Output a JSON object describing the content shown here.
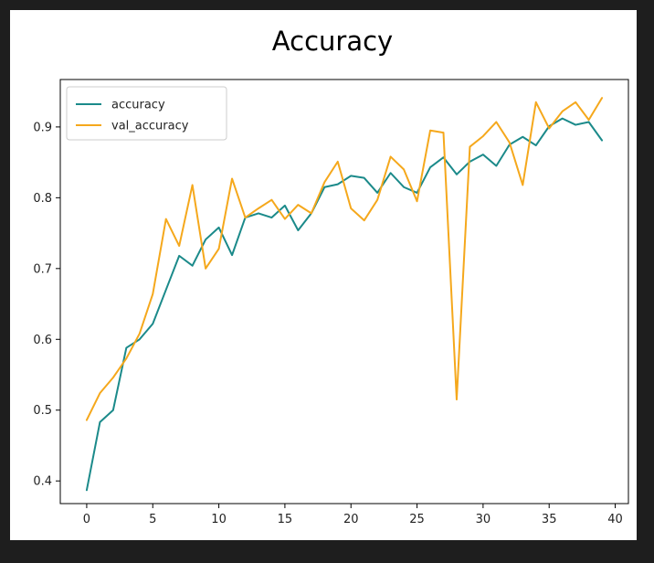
{
  "chart_data": {
    "type": "line",
    "title": "Accuracy",
    "xlabel": "",
    "ylabel": "",
    "xlim": [
      -2,
      41
    ],
    "ylim": [
      0.368,
      0.967
    ],
    "xticks": [
      0,
      5,
      10,
      15,
      20,
      25,
      30,
      35,
      40
    ],
    "yticks": [
      0.4,
      0.5,
      0.6,
      0.7,
      0.8,
      0.9
    ],
    "grid": false,
    "legend_position": "top-left",
    "x": [
      0,
      1,
      2,
      3,
      4,
      5,
      6,
      7,
      8,
      9,
      10,
      11,
      12,
      13,
      14,
      15,
      16,
      17,
      18,
      19,
      20,
      21,
      22,
      23,
      24,
      25,
      26,
      27,
      28,
      29,
      30,
      31,
      32,
      33,
      34,
      35,
      36,
      37,
      38,
      39
    ],
    "series": [
      {
        "name": "accuracy",
        "color": "#1b8a8a",
        "values": [
          0.387,
          0.483,
          0.5,
          0.588,
          0.6,
          0.622,
          0.67,
          0.718,
          0.704,
          0.741,
          0.758,
          0.719,
          0.772,
          0.778,
          0.772,
          0.789,
          0.754,
          0.778,
          0.815,
          0.819,
          0.831,
          0.828,
          0.807,
          0.835,
          0.815,
          0.807,
          0.843,
          0.857,
          0.833,
          0.851,
          0.861,
          0.845,
          0.875,
          0.886,
          0.874,
          0.901,
          0.912,
          0.903,
          0.907,
          0.881
        ]
      },
      {
        "name": "val_accuracy",
        "color": "#f5a81c",
        "values": [
          0.486,
          0.524,
          0.546,
          0.573,
          0.608,
          0.664,
          0.77,
          0.732,
          0.818,
          0.7,
          0.728,
          0.827,
          0.772,
          0.785,
          0.797,
          0.77,
          0.79,
          0.778,
          0.822,
          0.851,
          0.785,
          0.768,
          0.797,
          0.858,
          0.84,
          0.795,
          0.895,
          0.892,
          0.515,
          0.872,
          0.887,
          0.907,
          0.878,
          0.818,
          0.935,
          0.898,
          0.922,
          0.935,
          0.91,
          0.941
        ]
      }
    ]
  }
}
